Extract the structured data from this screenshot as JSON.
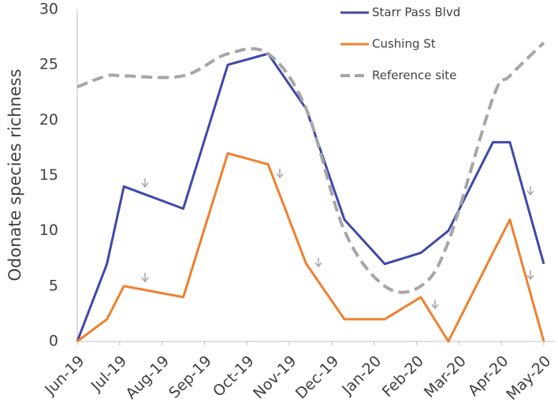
{
  "chart_data": {
    "type": "line",
    "y_label": "Odonate species richness",
    "xlim": [
      0,
      11
    ],
    "xticks": [
      {
        "value": 0,
        "label": "Jun-19"
      },
      {
        "value": 1,
        "label": "Jul-19"
      },
      {
        "value": 2,
        "label": "Aug-19"
      },
      {
        "value": 3,
        "label": "Sep-19"
      },
      {
        "value": 4,
        "label": "Oct-19"
      },
      {
        "value": 5,
        "label": "Nov-19"
      },
      {
        "value": 6,
        "label": "Dec-19"
      },
      {
        "value": 7,
        "label": "Jan-20"
      },
      {
        "value": 8,
        "label": "Feb-20"
      },
      {
        "value": 9,
        "label": "Mar-20"
      },
      {
        "value": 10,
        "label": "Apr-20"
      },
      {
        "value": 11,
        "label": "May-20"
      }
    ],
    "ylim": [
      0,
      30
    ],
    "yticks": [
      0,
      5,
      10,
      15,
      20,
      25,
      30
    ],
    "grid": false,
    "legend": "top-right",
    "x": [
      0,
      0.7,
      1.1,
      2.5,
      3.55,
      4.5,
      5.4,
      6.3,
      7.25,
      8.1,
      8.75,
      9.8,
      10.2,
      11
    ],
    "series": [
      {
        "name": "Starr Pass Blvd",
        "color": "#3f48a8",
        "dashed": false,
        "smooth": false,
        "values": [
          0,
          7,
          14,
          12,
          25,
          26,
          21,
          11,
          7,
          8,
          10,
          18,
          18,
          7
        ]
      },
      {
        "name": "Cushing St",
        "color": "#f0802f",
        "dashed": false,
        "smooth": false,
        "values": [
          0,
          2,
          5,
          4,
          17,
          16,
          7,
          2,
          2,
          4,
          0,
          8,
          11,
          0
        ]
      },
      {
        "name": "Reference site",
        "color": "#a6a6a6",
        "dashed": true,
        "smooth": true,
        "values": [
          23,
          24,
          24,
          24,
          26,
          26,
          21,
          10,
          5,
          5,
          9,
          22,
          24,
          27
        ]
      }
    ]
  }
}
